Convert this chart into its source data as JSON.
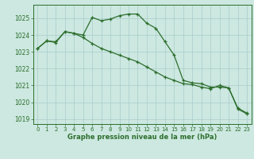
{
  "title": "Graphe pression niveau de la mer (hPa)",
  "background_color": "#cce8e0",
  "grid_color": "#aacccc",
  "line_color": "#2d6e2d",
  "xlim": [
    -0.5,
    23.5
  ],
  "ylim": [
    1018.7,
    1025.8
  ],
  "yticks": [
    1019,
    1020,
    1021,
    1022,
    1023,
    1024,
    1025
  ],
  "xticks": [
    0,
    1,
    2,
    3,
    4,
    5,
    6,
    7,
    8,
    9,
    10,
    11,
    12,
    13,
    14,
    15,
    16,
    17,
    18,
    19,
    20,
    21,
    22,
    23
  ],
  "series1": [
    1023.2,
    1023.65,
    1023.6,
    1024.2,
    1024.1,
    1024.0,
    1025.05,
    1024.85,
    1024.95,
    1025.15,
    1025.25,
    1025.25,
    1024.7,
    1024.4,
    1023.6,
    1022.8,
    1021.3,
    1021.15,
    1021.1,
    1020.9,
    1020.9,
    1020.85,
    1019.6,
    1019.3
  ],
  "series2": [
    1023.2,
    1023.65,
    1023.55,
    1024.2,
    1024.1,
    1023.85,
    1023.5,
    1023.2,
    1023.0,
    1022.8,
    1022.6,
    1022.4,
    1022.1,
    1021.8,
    1021.5,
    1021.3,
    1021.1,
    1021.05,
    1020.9,
    1020.8,
    1021.0,
    1020.85,
    1019.65,
    1019.35
  ]
}
